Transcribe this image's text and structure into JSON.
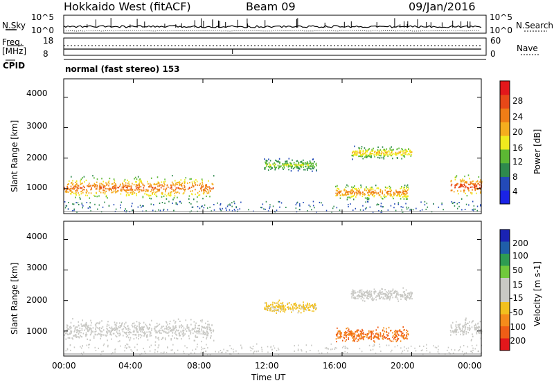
{
  "header": {
    "station": "Hokkaido West (fitACF)",
    "beam": "Beam 09",
    "date": "09/Jan/2016"
  },
  "stats": {
    "nsky_label": "N.Sky",
    "nsky_top": "10^5",
    "nsky_bottom": "10^0",
    "nsearch_label": "N.Search",
    "nsearch_top": "10^5",
    "nsearch_bottom": "10^0",
    "freq_label": "Freq.",
    "freq_unit": "[MHz]",
    "freq_top": "18",
    "freq_bottom": "8",
    "nave_label": "Nave",
    "nave_top": "60",
    "nave_bottom": "0",
    "cpid_label": "CPID",
    "cpid_text": "normal (fast stereo) 153"
  },
  "colors": {
    "power": [
      "#1a23e6",
      "#234ab8",
      "#2e8a4d",
      "#5cb833",
      "#f0ea1e",
      "#f5ad1e",
      "#ef7d16",
      "#e84818",
      "#e3171b"
    ],
    "velocity": [
      "#e3171b",
      "#ef5d16",
      "#f58c1b",
      "#f2c01e",
      "#c8c8c4",
      "#c8c8c4",
      "#70c83c",
      "#2e9c52",
      "#1f5ea9",
      "#1a23b4"
    ]
  },
  "chart_data": [
    {
      "type": "heatmap",
      "title": "Power",
      "ylabel": "Slant Range [km]",
      "xlabel": "",
      "x_ticks": [
        "00:00",
        "04:00",
        "08:00",
        "12:00",
        "16:00",
        "20:00",
        "00:00"
      ],
      "y_ticks": [
        "1000",
        "2000",
        "3000",
        "4000"
      ],
      "ylim": [
        180,
        4600
      ],
      "colorbar": {
        "label": "Power [dB]",
        "ticks": [
          "4",
          "8",
          "12",
          "16",
          "20",
          "24",
          "28"
        ],
        "range": [
          0,
          30
        ]
      },
      "scatter_regions": [
        {
          "from_h": 0.0,
          "to_h": 8.6,
          "range_km": 1050,
          "width_km": 900,
          "peak_db": 24
        },
        {
          "from_h": 11.5,
          "to_h": 14.5,
          "range_km": 1800,
          "width_km": 500,
          "peak_db": 14
        },
        {
          "from_h": 15.6,
          "to_h": 19.8,
          "range_km": 900,
          "width_km": 600,
          "peak_db": 22
        },
        {
          "from_h": 16.5,
          "to_h": 20.0,
          "range_km": 2200,
          "width_km": 500,
          "peak_db": 18
        },
        {
          "from_h": 22.2,
          "to_h": 24.0,
          "range_km": 1100,
          "width_km": 900,
          "peak_db": 26
        }
      ]
    },
    {
      "type": "heatmap",
      "title": "Velocity",
      "ylabel": "Slant Range [km]",
      "xlabel": "Time UT",
      "x_ticks": [
        "00:00",
        "04:00",
        "08:00",
        "12:00",
        "16:00",
        "20:00",
        "00:00"
      ],
      "y_ticks": [
        "1000",
        "2000",
        "3000",
        "4000"
      ],
      "ylim": [
        180,
        4600
      ],
      "colorbar": {
        "label": "Velocity [m s-1]",
        "ticks": [
          "200",
          "100",
          "50",
          "15",
          "-15",
          "-50",
          "-100",
          "-200"
        ],
        "range": [
          -250,
          250
        ]
      },
      "scatter_regions": [
        {
          "from_h": 0.0,
          "to_h": 8.6,
          "range_km": 1050,
          "width_km": 900,
          "velocity": 0
        },
        {
          "from_h": 11.5,
          "to_h": 14.5,
          "range_km": 1800,
          "width_km": 500,
          "velocity": -60
        },
        {
          "from_h": 15.6,
          "to_h": 19.8,
          "range_km": 900,
          "width_km": 600,
          "velocity": -150
        },
        {
          "from_h": 16.5,
          "to_h": 20.0,
          "range_km": 2200,
          "width_km": 500,
          "velocity": 0
        },
        {
          "from_h": 22.2,
          "to_h": 24.0,
          "range_km": 1100,
          "width_km": 900,
          "velocity": 30
        }
      ]
    }
  ]
}
